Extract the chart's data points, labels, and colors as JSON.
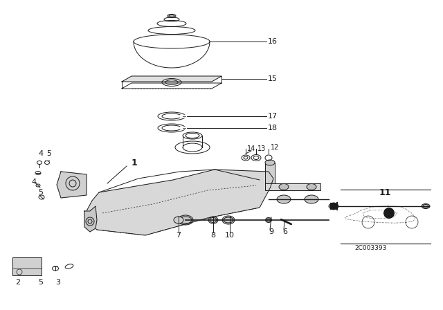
{
  "bg_color": "#ffffff",
  "line_color": "#1a1a1a",
  "diagram_code": "2C003393",
  "parts": [
    "1",
    "2",
    "3",
    "4",
    "5",
    "6",
    "7",
    "8",
    "9",
    "10",
    "11",
    "12",
    "13",
    "14",
    "15",
    "16",
    "17",
    "18"
  ]
}
